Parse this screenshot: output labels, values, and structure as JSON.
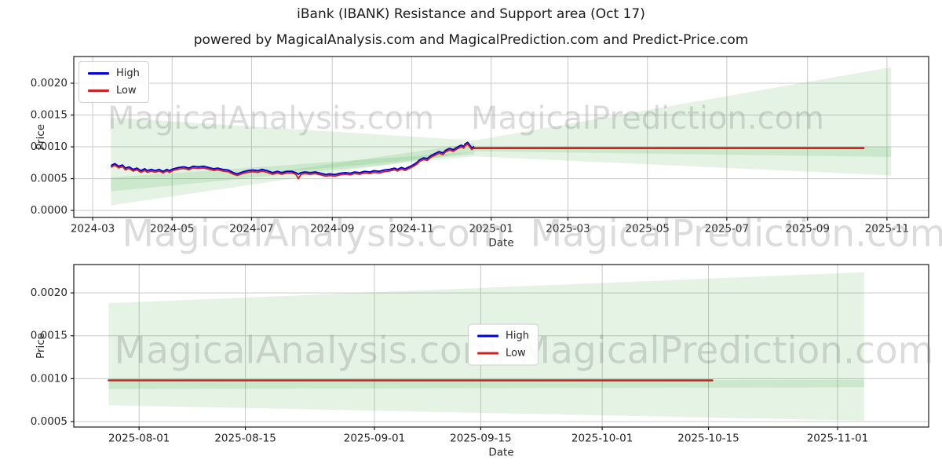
{
  "header": {
    "title": "iBank (IBANK) Resistance and Support area (Oct 17)",
    "subtitle": "powered by MagicalAnalysis.com and MagicalPrediction.com and Predict-Price.com"
  },
  "watermarks": {
    "analysis": "MagicalAnalysis.com",
    "prediction": "MagicalPrediction.com"
  },
  "legend": {
    "high": "High",
    "low": "Low"
  },
  "colors": {
    "high": "#0000dd",
    "low": "#cc2222",
    "band": "rgba(44,160,44,0.13)",
    "grid": "#c9c9c9",
    "spine": "#1a1a1a",
    "tick_text": "#262626",
    "watermark": "rgba(125,125,125,0.28)"
  },
  "chart_data": [
    {
      "type": "line",
      "ylabel": "Price",
      "xlabel": "Date",
      "x_origin_date": "2024-03-01",
      "xlim_days": [
        -14.5,
        642
      ],
      "ylim": [
        -0.00011,
        0.00242
      ],
      "grid": true,
      "legend_loc": "upper left",
      "legend_entries": [
        {
          "label": "High",
          "color": "#0000dd"
        },
        {
          "label": "Low",
          "color": "#cc2222"
        }
      ],
      "xticks": [
        {
          "t": 0,
          "label": "2024-03"
        },
        {
          "t": 61,
          "label": "2024-05"
        },
        {
          "t": 122,
          "label": "2024-07"
        },
        {
          "t": 184,
          "label": "2024-09"
        },
        {
          "t": 245,
          "label": "2024-11"
        },
        {
          "t": 306,
          "label": "2025-01"
        },
        {
          "t": 365,
          "label": "2025-03"
        },
        {
          "t": 426,
          "label": "2025-05"
        },
        {
          "t": 487,
          "label": "2025-07"
        },
        {
          "t": 549,
          "label": "2025-09"
        },
        {
          "t": 610,
          "label": "2025-11"
        }
      ],
      "yticks": [
        {
          "v": 0.0,
          "label": "0.0000"
        },
        {
          "v": 0.0005,
          "label": "0.0005"
        },
        {
          "v": 0.001,
          "label": "0.0010"
        },
        {
          "v": 0.0015,
          "label": "0.0015"
        },
        {
          "v": 0.002,
          "label": "0.0020"
        }
      ],
      "bands": [
        [
          [
            14,
            0.00146
          ],
          [
            293,
            0.0011
          ],
          [
            613,
            0.00225
          ],
          [
            613,
            0.00055
          ],
          [
            293,
            0.00085
          ],
          [
            14,
            0.0003
          ]
        ],
        [
          [
            132,
            0.00058
          ],
          [
            293,
            0.00106
          ],
          [
            293,
            0.00088
          ]
        ],
        [
          [
            14,
            0.00052
          ],
          [
            14,
            8e-05
          ],
          [
            293,
            0.00092
          ]
        ],
        [
          [
            293,
            0.00099
          ],
          [
            613,
            0.001
          ],
          [
            613,
            0.00084
          ],
          [
            293,
            0.00093
          ]
        ]
      ],
      "series_high": [
        [
          14,
          0.000705
        ],
        [
          17,
          0.000735
        ],
        [
          20,
          0.000695
        ],
        [
          23,
          0.000715
        ],
        [
          25,
          0.000665
        ],
        [
          28,
          0.000685
        ],
        [
          31,
          0.000645
        ],
        [
          34,
          0.000665
        ],
        [
          37,
          0.000625
        ],
        [
          40,
          0.000655
        ],
        [
          42,
          0.000625
        ],
        [
          45,
          0.000645
        ],
        [
          48,
          0.000625
        ],
        [
          51,
          0.000645
        ],
        [
          54,
          0.000615
        ],
        [
          57,
          0.000645
        ],
        [
          59,
          0.000625
        ],
        [
          62,
          0.000655
        ],
        [
          66,
          0.000675
        ],
        [
          70,
          0.000685
        ],
        [
          74,
          0.000665
        ],
        [
          77,
          0.000695
        ],
        [
          81,
          0.000685
        ],
        [
          85,
          0.000695
        ],
        [
          89,
          0.000675
        ],
        [
          93,
          0.000655
        ],
        [
          96,
          0.000665
        ],
        [
          100,
          0.000645
        ],
        [
          104,
          0.000635
        ],
        [
          108,
          0.000595
        ],
        [
          111,
          0.000575
        ],
        [
          115,
          0.000605
        ],
        [
          119,
          0.000625
        ],
        [
          123,
          0.000635
        ],
        [
          127,
          0.000625
        ],
        [
          130,
          0.000645
        ],
        [
          134,
          0.000625
        ],
        [
          138,
          0.000595
        ],
        [
          142,
          0.000615
        ],
        [
          145,
          0.000595
        ],
        [
          149,
          0.000615
        ],
        [
          153,
          0.000615
        ],
        [
          156,
          0.000595
        ],
        [
          158,
          0.00057
        ],
        [
          160,
          0.000595
        ],
        [
          163,
          0.000605
        ],
        [
          167,
          0.000595
        ],
        [
          171,
          0.000605
        ],
        [
          175,
          0.000585
        ],
        [
          179,
          0.000565
        ],
        [
          182,
          0.000575
        ],
        [
          186,
          0.000565
        ],
        [
          190,
          0.000585
        ],
        [
          194,
          0.000595
        ],
        [
          198,
          0.000585
        ],
        [
          201,
          0.000605
        ],
        [
          205,
          0.000595
        ],
        [
          209,
          0.000615
        ],
        [
          213,
          0.000605
        ],
        [
          216,
          0.000625
        ],
        [
          220,
          0.000615
        ],
        [
          224,
          0.000635
        ],
        [
          228,
          0.000645
        ],
        [
          232,
          0.000665
        ],
        [
          234,
          0.000645
        ],
        [
          237,
          0.000675
        ],
        [
          240,
          0.000655
        ],
        [
          243,
          0.000685
        ],
        [
          246,
          0.000715
        ],
        [
          249,
          0.000755
        ],
        [
          251,
          0.000795
        ],
        [
          254,
          0.000825
        ],
        [
          257,
          0.000815
        ],
        [
          260,
          0.000865
        ],
        [
          263,
          0.000895
        ],
        [
          266,
          0.000925
        ],
        [
          269,
          0.000905
        ],
        [
          271,
          0.000945
        ],
        [
          274,
          0.000975
        ],
        [
          277,
          0.000955
        ],
        [
          280,
          0.000995
        ],
        [
          283,
          0.001025
        ],
        [
          285,
          0.001005
        ],
        [
          286,
          0.001045
        ],
        [
          288,
          0.00107
        ],
        [
          290,
          0.001015
        ],
        [
          291,
          0.000985
        ],
        [
          293,
          0.001005
        ]
      ],
      "series_low": [
        [
          14,
          0.00068
        ],
        [
          17,
          0.00071
        ],
        [
          20,
          0.00067
        ],
        [
          23,
          0.00069
        ],
        [
          25,
          0.00064
        ],
        [
          28,
          0.00066
        ],
        [
          31,
          0.00062
        ],
        [
          34,
          0.00064
        ],
        [
          37,
          0.0006
        ],
        [
          40,
          0.00063
        ],
        [
          42,
          0.0006
        ],
        [
          45,
          0.00062
        ],
        [
          48,
          0.0006
        ],
        [
          51,
          0.00062
        ],
        [
          54,
          0.00059
        ],
        [
          57,
          0.00062
        ],
        [
          59,
          0.0006
        ],
        [
          62,
          0.00063
        ],
        [
          66,
          0.00065
        ],
        [
          70,
          0.00066
        ],
        [
          74,
          0.00064
        ],
        [
          77,
          0.00067
        ],
        [
          81,
          0.00066
        ],
        [
          85,
          0.00067
        ],
        [
          89,
          0.00065
        ],
        [
          93,
          0.00063
        ],
        [
          96,
          0.00064
        ],
        [
          100,
          0.00062
        ],
        [
          104,
          0.00061
        ],
        [
          108,
          0.00057
        ],
        [
          111,
          0.00055
        ],
        [
          115,
          0.00058
        ],
        [
          119,
          0.0006
        ],
        [
          123,
          0.00061
        ],
        [
          127,
          0.0006
        ],
        [
          130,
          0.00062
        ],
        [
          134,
          0.0006
        ],
        [
          138,
          0.00057
        ],
        [
          142,
          0.00059
        ],
        [
          145,
          0.00057
        ],
        [
          149,
          0.00059
        ],
        [
          153,
          0.00059
        ],
        [
          156,
          0.00057
        ],
        [
          158,
          0.0005
        ],
        [
          160,
          0.00057
        ],
        [
          163,
          0.00058
        ],
        [
          167,
          0.00057
        ],
        [
          171,
          0.00058
        ],
        [
          175,
          0.00056
        ],
        [
          179,
          0.00054
        ],
        [
          182,
          0.00055
        ],
        [
          186,
          0.00054
        ],
        [
          190,
          0.00056
        ],
        [
          194,
          0.00057
        ],
        [
          198,
          0.00056
        ],
        [
          201,
          0.00058
        ],
        [
          205,
          0.00057
        ],
        [
          209,
          0.00059
        ],
        [
          213,
          0.00058
        ],
        [
          216,
          0.0006
        ],
        [
          220,
          0.00059
        ],
        [
          224,
          0.00061
        ],
        [
          228,
          0.00062
        ],
        [
          232,
          0.00064
        ],
        [
          234,
          0.00062
        ],
        [
          237,
          0.00065
        ],
        [
          240,
          0.00063
        ],
        [
          243,
          0.00066
        ],
        [
          246,
          0.00069
        ],
        [
          249,
          0.00073
        ],
        [
          251,
          0.00077
        ],
        [
          254,
          0.0008
        ],
        [
          257,
          0.00079
        ],
        [
          260,
          0.00084
        ],
        [
          263,
          0.00087
        ],
        [
          266,
          0.0009
        ],
        [
          269,
          0.00088
        ],
        [
          271,
          0.00092
        ],
        [
          274,
          0.00095
        ],
        [
          277,
          0.00093
        ],
        [
          280,
          0.00097
        ],
        [
          283,
          0.001
        ],
        [
          285,
          0.00098
        ],
        [
          286,
          0.00102
        ],
        [
          288,
          0.00104
        ],
        [
          290,
          0.00099
        ],
        [
          291,
          0.00096
        ],
        [
          293,
          0.00098
        ]
      ],
      "forecast": {
        "t_start": 293,
        "t_end": 592,
        "value": 0.00098
      }
    },
    {
      "type": "line",
      "ylabel": "Price",
      "xlabel": "Date",
      "x_origin_date": "2025-08-01",
      "xlim_days": [
        -8.6,
        104
      ],
      "ylim": [
        0.000436,
        0.00233
      ],
      "grid": true,
      "legend_loc": "center",
      "legend_entries": [
        {
          "label": "High",
          "color": "#0000dd"
        },
        {
          "label": "Low",
          "color": "#cc2222"
        }
      ],
      "xticks": [
        {
          "t": 0,
          "label": "2025-08-01"
        },
        {
          "t": 14,
          "label": "2025-08-15"
        },
        {
          "t": 31,
          "label": "2025-09-01"
        },
        {
          "t": 45,
          "label": "2025-09-15"
        },
        {
          "t": 61,
          "label": "2025-10-01"
        },
        {
          "t": 75,
          "label": "2025-10-15"
        },
        {
          "t": 92,
          "label": "2025-11-01"
        }
      ],
      "yticks": [
        {
          "v": 0.0005,
          "label": "0.0005"
        },
        {
          "v": 0.001,
          "label": "0.0010"
        },
        {
          "v": 0.0015,
          "label": "0.0015"
        },
        {
          "v": 0.002,
          "label": "0.0020"
        }
      ],
      "bands": [
        [
          [
            -4,
            0.00188
          ],
          [
            95.5,
            0.00224
          ],
          [
            95.5,
            0.00051
          ],
          [
            -4,
            0.00069
          ]
        ],
        [
          [
            -4,
            0.00096
          ],
          [
            95.5,
            0.00099
          ],
          [
            95.5,
            0.0009
          ],
          [
            -4,
            0.00088
          ]
        ]
      ],
      "series_high": [],
      "series_low": [],
      "forecast": {
        "t_start": -4,
        "t_end": 75.5,
        "value": 0.00098
      }
    }
  ]
}
